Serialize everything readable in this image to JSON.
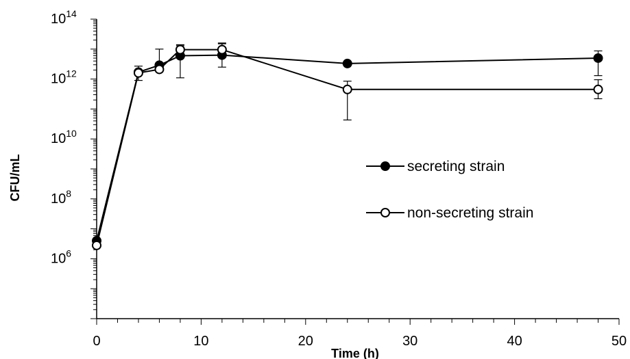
{
  "chart_data": {
    "type": "line",
    "title": "",
    "xlabel": "Time (h)",
    "ylabel": "CFU/mL",
    "xlim": [
      0,
      50
    ],
    "ylim_log10": [
      4,
      14
    ],
    "yscale": "log10",
    "x_ticks": [
      0,
      10,
      20,
      30,
      40,
      50
    ],
    "x_tick_labels": [
      "0",
      "10",
      "20",
      "30",
      "40",
      "50"
    ],
    "y_ticks_log10": [
      6,
      8,
      10,
      12,
      14
    ],
    "y_tick_labels": [
      {
        "base": "10",
        "exp": "6"
      },
      {
        "base": "10",
        "exp": "8"
      },
      {
        "base": "10",
        "exp": "10"
      },
      {
        "base": "10",
        "exp": "12"
      },
      {
        "base": "10",
        "exp": "14"
      }
    ],
    "grid": false,
    "legend_position": "center-right",
    "series": [
      {
        "name": "secreting strain",
        "marker": "filled-circle",
        "color": "#000000",
        "x": [
          0,
          4,
          6,
          8,
          12,
          24,
          48
        ],
        "y": [
          4000000.0,
          1700000000000.0,
          2900000000000.0,
          6000000000000.0,
          6300000000000.0,
          3300000000000.0,
          5000000000000.0
        ],
        "err_low": [
          null,
          900000000000.0,
          2200000000000.0,
          1100000000000.0,
          2500000000000.0,
          null,
          1300000000000.0
        ],
        "err_high": [
          null,
          2700000000000.0,
          10000000000000.0,
          14000000000000.0,
          15000000000000.0,
          null,
          8700000000000.0
        ]
      },
      {
        "name": "non-secreting strain",
        "marker": "open-circle",
        "color": "#000000",
        "x": [
          0,
          4,
          6,
          8,
          12,
          24,
          48
        ],
        "y": [
          2800000.0,
          1600000000000.0,
          2100000000000.0,
          9600000000000.0,
          9600000000000.0,
          450000000000.0,
          450000000000.0
        ],
        "err_low": [
          null,
          null,
          null,
          6000000000000.0,
          6000000000000.0,
          43000000000.0,
          220000000000.0
        ],
        "err_high": [
          null,
          null,
          null,
          13000000000000.0,
          16000000000000.0,
          850000000000.0,
          950000000000.0
        ]
      }
    ]
  }
}
